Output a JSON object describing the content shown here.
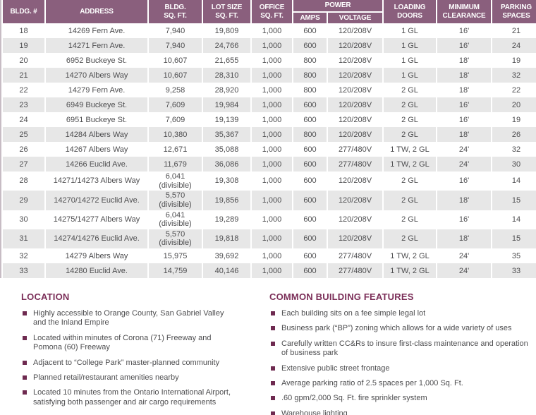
{
  "colors": {
    "header_bg": "#8a5f7d",
    "section_heading": "#7b2e58",
    "bullet": "#6e2a50",
    "row_alt": "#e7e7e7",
    "body_text": "#4d4d4f",
    "table_border_right": "#7d5874",
    "table_border_left": "#c7bcc4"
  },
  "table": {
    "headers": {
      "bldg_no": "BLDG. #",
      "address": "ADDRESS",
      "bldg_sqft": "BLDG.\nSQ. FT.",
      "lot_size": "LOT SIZE\nSQ. FT.",
      "office_sqft": "OFFICE\nSQ. FT.",
      "power": "POWER",
      "amps": "AMPS",
      "voltage": "VOLTAGE",
      "loading_doors": "LOADING\nDOORS",
      "min_clearance": "MINIMUM\nCLEARANCE",
      "parking_spaces": "PARKING\nSPACES"
    },
    "rows": [
      [
        "18",
        "14269 Fern Ave.",
        "7,940",
        "19,809",
        "1,000",
        "600",
        "120/208V",
        "1 GL",
        "16'",
        "21"
      ],
      [
        "19",
        "14271 Fern Ave.",
        "7,940",
        "24,766",
        "1,000",
        "600",
        "120/208V",
        "1 GL",
        "16'",
        "24"
      ],
      [
        "20",
        "6952 Buckeye St.",
        "10,607",
        "21,655",
        "1,000",
        "800",
        "120/208V",
        "1 GL",
        "18'",
        "19"
      ],
      [
        "21",
        "14270 Albers Way",
        "10,607",
        "28,310",
        "1,000",
        "800",
        "120/208V",
        "1 GL",
        "18'",
        "32"
      ],
      [
        "22",
        "14279 Fern Ave.",
        "9,258",
        "28,920",
        "1,000",
        "800",
        "120/208V",
        "2 GL",
        "18'",
        "22"
      ],
      [
        "23",
        "6949 Buckeye St.",
        "7,609",
        "19,984",
        "1,000",
        "600",
        "120/208V",
        "2 GL",
        "16'",
        "20"
      ],
      [
        "24",
        "6951 Buckeye St.",
        "7,609",
        "19,139",
        "1,000",
        "600",
        "120/208V",
        "2 GL",
        "16'",
        "19"
      ],
      [
        "25",
        "14284 Albers Way",
        "10,380",
        "35,367",
        "1,000",
        "800",
        "120/208V",
        "2 GL",
        "18'",
        "26"
      ],
      [
        "26",
        "14267 Albers Way",
        "12,671",
        "35,088",
        "1,000",
        "600",
        "277/480V",
        "1 TW, 2 GL",
        "24'",
        "32"
      ],
      [
        "27",
        "14266 Euclid Ave.",
        "11,679",
        "36,086",
        "1,000",
        "600",
        "277/480V",
        "1 TW, 2 GL",
        "24'",
        "30"
      ],
      [
        "28",
        "14271/14273 Albers Way",
        "6,041\n(divisible)",
        "19,308",
        "1,000",
        "600",
        "120/208V",
        "2 GL",
        "16'",
        "14"
      ],
      [
        "29",
        "14270/14272 Euclid Ave.",
        "5,570\n(divisible)",
        "19,856",
        "1,000",
        "600",
        "120/208V",
        "2 GL",
        "18'",
        "15"
      ],
      [
        "30",
        "14275/14277 Albers Way",
        "6,041\n(divisible)",
        "19,289",
        "1,000",
        "600",
        "120/208V",
        "2 GL",
        "16'",
        "14"
      ],
      [
        "31",
        "14274/14276 Euclid Ave.",
        "5,570\n(divisible)",
        "19,818",
        "1,000",
        "600",
        "120/208V",
        "2 GL",
        "18'",
        "15"
      ],
      [
        "32",
        "14279 Albers Way",
        "15,975",
        "39,692",
        "1,000",
        "600",
        "277/480V",
        "1 TW, 2 GL",
        "24'",
        "35"
      ],
      [
        "33",
        "14280 Euclid Ave.",
        "14,759",
        "40,146",
        "1,000",
        "600",
        "277/480V",
        "1 TW, 2 GL",
        "24'",
        "33"
      ]
    ],
    "tall_row_numbers": [
      "28",
      "29",
      "30",
      "31"
    ]
  },
  "location": {
    "title": "LOCATION",
    "items": [
      "Highly accessible to Orange County, San Gabriel Valley and the Inland Empire",
      "Located within minutes of Corona (71) Freeway and Pomona (60) Freeway",
      "Adjacent to “College Park” master-planned community",
      "Planned retail/restaurant amenities nearby",
      "Located 10 minutes from the Ontario International Airport, satisfying both passenger and air cargo requirements"
    ]
  },
  "features": {
    "title": "COMMON BUILDING FEATURES",
    "items": [
      "Each building sits on a fee simple legal lot",
      "Business park (“BP”) zoning which allows for a wide variety of uses",
      "Carefully written CC&Rs to insure first-class maintenance and operation of business park",
      "Extensive public street frontage",
      "Average parking ratio of 2.5 spaces per 1,000 Sq. Ft.",
      ".60 gpm/2,000 Sq. Ft. fire sprinkler system",
      "Warehouse lighting"
    ]
  }
}
